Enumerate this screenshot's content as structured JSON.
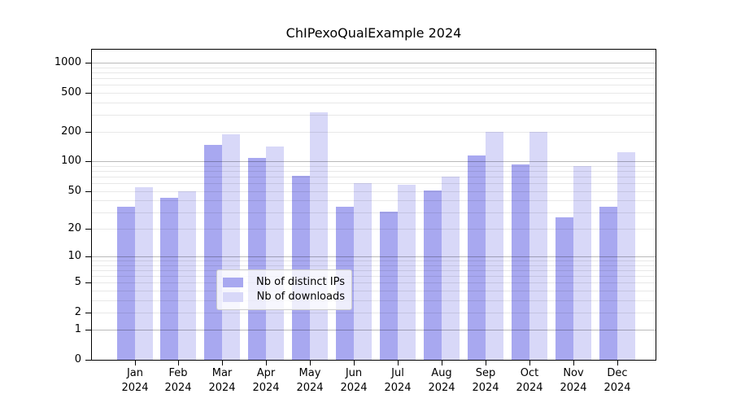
{
  "title": "ChIPexoQualExample 2024",
  "colors": {
    "distinct_ips": "#a8a8f0",
    "downloads": "#d8d8f8",
    "axis": "#000000",
    "grid_major": "#bbbbbb",
    "grid_minor": "#e8e8e8",
    "legend_border": "#cccccc"
  },
  "chart_data": {
    "type": "bar",
    "title": "ChIPexoQualExample 2024",
    "categories": [
      "Jan 2024",
      "Feb 2024",
      "Mar 2024",
      "Apr 2024",
      "May 2024",
      "Jun 2024",
      "Jul 2024",
      "Aug 2024",
      "Sep 2024",
      "Oct 2024",
      "Nov 2024",
      "Dec 2024"
    ],
    "series": [
      {
        "key": "distinct-ips",
        "name": "Nb of distinct IPs",
        "color": "#a8a8f0",
        "values": [
          35,
          43,
          152,
          110,
          73,
          35,
          31,
          52,
          117,
          96,
          27,
          35
        ]
      },
      {
        "key": "downloads",
        "name": "Nb of downloads",
        "color": "#d8d8f8",
        "values": [
          56,
          51,
          193,
          144,
          324,
          61,
          59,
          72,
          206,
          206,
          92,
          126
        ]
      }
    ],
    "xlabel": "",
    "ylabel": "",
    "y_scale": "log10(1+x)",
    "y_ticks": [
      0,
      1,
      2,
      5,
      10,
      20,
      50,
      100,
      200,
      500,
      1000
    ],
    "ylim": [
      0,
      1430
    ],
    "grid": "horizontal major+minor",
    "legend_position": "lower center"
  }
}
